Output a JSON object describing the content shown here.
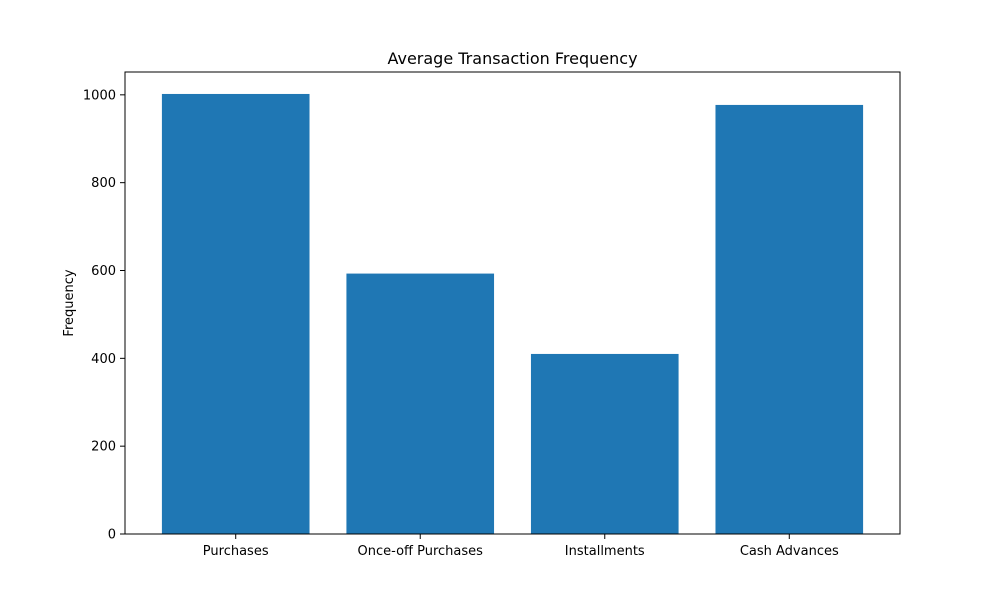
{
  "chart_data": {
    "type": "bar",
    "title": "Average Transaction Frequency",
    "xlabel": "",
    "ylabel": "Frequency",
    "categories": [
      "Purchases",
      "Once-off Purchases",
      "Installments",
      "Cash Advances"
    ],
    "values": [
      1002,
      593,
      410,
      977
    ],
    "ylim": [
      0,
      1052
    ],
    "yticks": [
      0,
      200,
      400,
      600,
      800,
      1000
    ],
    "bar_color": "#1f77b4",
    "grid": false,
    "legend": "none"
  }
}
